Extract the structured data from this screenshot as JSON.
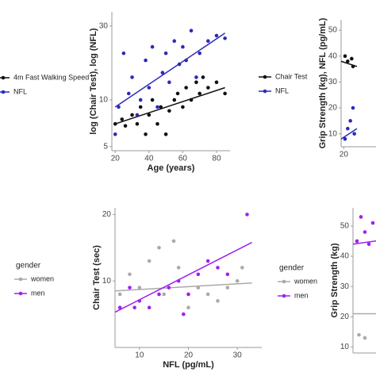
{
  "chart_data": [
    {
      "type": "scatter",
      "series": [
        {
          "name": "4m Fast Walking Speed",
          "color": "#111111",
          "x": [],
          "values": []
        },
        {
          "name": "NFL",
          "color": "#2b2bb8",
          "x": [],
          "values": []
        }
      ]
    },
    {
      "type": "scatter",
      "x_label": "Age (years)",
      "y_label": "log (Chair Test), log (NFL)",
      "xlim": [
        18,
        88
      ],
      "xticks": [
        20,
        40,
        60,
        80
      ],
      "ylim": [
        4.7,
        37
      ],
      "yticks": [
        5,
        10,
        30
      ],
      "log_y": true,
      "series": [
        {
          "name": "Chair Test",
          "color": "#111111",
          "x": [
            20,
            24,
            26,
            30,
            33,
            35,
            38,
            40,
            42,
            45,
            47,
            50,
            52,
            55,
            57,
            60,
            62,
            65,
            68,
            70,
            72,
            75,
            80,
            85
          ],
          "values": [
            7,
            7.5,
            6.8,
            8,
            7,
            9,
            6,
            8,
            10,
            7,
            9,
            6,
            8.5,
            10,
            11,
            9,
            12,
            10,
            13,
            11,
            14,
            12,
            13,
            11
          ],
          "trend": {
            "x": [
              20,
              85
            ],
            "y": [
              7,
              12
            ]
          }
        },
        {
          "name": "NFL",
          "color": "#2b2bb8",
          "x": [
            20,
            22,
            25,
            28,
            30,
            33,
            35,
            38,
            40,
            42,
            45,
            48,
            50,
            52,
            55,
            58,
            60,
            62,
            65,
            68,
            70,
            75,
            80,
            85
          ],
          "values": [
            6,
            9,
            20,
            11,
            14,
            8,
            10,
            18,
            12,
            22,
            9,
            15,
            20,
            13,
            24,
            17,
            22,
            18,
            28,
            14,
            20,
            24,
            26,
            25
          ],
          "trend": {
            "x": [
              20,
              85
            ],
            "y": [
              9,
              27
            ]
          }
        }
      ]
    },
    {
      "type": "scatter",
      "y_label": "Grip Strength (kg), NFL (pg/mL)",
      "xlim": [
        18,
        60
      ],
      "xticks": [
        20
      ],
      "ylim": [
        5,
        54
      ],
      "yticks": [
        10,
        20,
        30,
        40,
        50
      ],
      "series": [
        {
          "color": "#111111",
          "x": [
            21,
            23,
            26,
            27
          ],
          "values": [
            40,
            38,
            39,
            36
          ],
          "trend": {
            "x": [
              18,
              30
            ],
            "y": [
              38,
              36
            ]
          }
        },
        {
          "color": "#2b2bb8",
          "x": [
            21,
            23,
            25,
            27,
            28
          ],
          "values": [
            8,
            12,
            15,
            20,
            10
          ],
          "trend": {
            "x": [
              18,
              30
            ],
            "y": [
              8,
              12
            ]
          }
        }
      ]
    },
    {
      "type": "scatter",
      "legend_title": "gender",
      "series": [
        {
          "name": "women",
          "color": "#aaaaaa",
          "x": [],
          "values": []
        },
        {
          "name": "men",
          "color": "#a020f0",
          "x": [],
          "values": []
        }
      ]
    },
    {
      "type": "scatter",
      "x_label": "NFL (pg/mL)",
      "y_label": "Chair Test (sec)",
      "legend_title": "gender",
      "xlim": [
        5,
        35
      ],
      "xticks": [
        10,
        20,
        30
      ],
      "ylim": [
        0,
        21
      ],
      "yticks": [
        10,
        20
      ],
      "series": [
        {
          "name": "women",
          "color": "#aaaaaa",
          "x": [
            6,
            8,
            10,
            12,
            14,
            15,
            17,
            18,
            20,
            22,
            24,
            26,
            28,
            30,
            31
          ],
          "values": [
            8,
            11,
            9,
            13,
            15,
            8,
            16,
            12,
            6,
            9,
            8,
            7,
            9,
            10,
            12
          ],
          "trend": {
            "x": [
              5,
              33
            ],
            "y": [
              8.5,
              9.7
            ]
          }
        },
        {
          "name": "men",
          "color": "#a020f0",
          "x": [
            6,
            8,
            9,
            10,
            12,
            14,
            16,
            18,
            19,
            20,
            22,
            24,
            26,
            28,
            32
          ],
          "values": [
            6,
            9,
            6,
            7,
            6,
            8,
            9,
            10,
            5,
            8,
            11,
            13,
            12,
            11,
            20
          ],
          "trend": {
            "x": [
              5,
              33
            ],
            "y": [
              5.3,
              15.8
            ]
          }
        }
      ]
    },
    {
      "type": "scatter",
      "y_label": "Grip Strength (kg)",
      "xlim": [
        18,
        40
      ],
      "ylim": [
        8,
        56
      ],
      "yticks": [
        10,
        20,
        30,
        40,
        50
      ],
      "series": [
        {
          "color": "#aaaaaa",
          "x": [
            21,
            24
          ],
          "values": [
            14,
            13
          ],
          "trend": {
            "x": [
              18,
              40
            ],
            "y": [
              21,
              21
            ]
          }
        },
        {
          "color": "#a020f0",
          "x": [
            20,
            22,
            24,
            26,
            28
          ],
          "values": [
            45,
            53,
            48,
            44,
            51
          ],
          "trend": {
            "x": [
              18,
              40
            ],
            "y": [
              44,
              46
            ]
          }
        }
      ]
    }
  ]
}
